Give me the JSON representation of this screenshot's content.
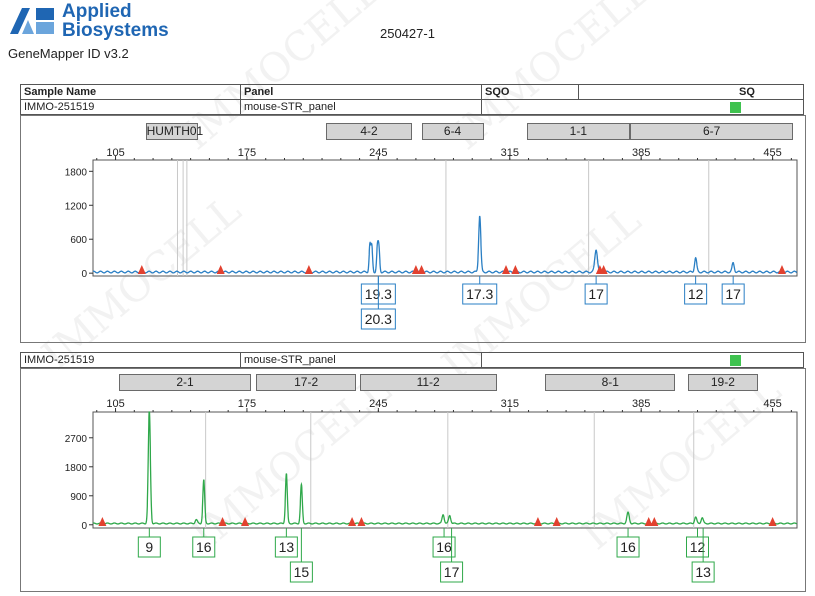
{
  "header": {
    "brand_line1": "Applied",
    "brand_line2": "Biosystems",
    "product": "GeneMapper ID v3.2",
    "run_id": "250427-1",
    "watermark": "IMMOCELL"
  },
  "table_headers": {
    "sample_name": "Sample Name",
    "panel": "Panel",
    "sqo": "SQO",
    "sq": "SQ"
  },
  "colors": {
    "blue_trace": "#2a7fc4",
    "green_trace": "#2fa84a",
    "marker": "#e2412f",
    "sq_ok": "#3fc24f",
    "bin_fill": "#d4d4d4"
  },
  "samples": [
    {
      "sample_name": "IMMO-251519",
      "panel": "mouse-STR_panel",
      "bins": [
        {
          "label": "HUMTH01",
          "from": 121,
          "to": 148
        },
        {
          "label": "4-2",
          "from": 217,
          "to": 262
        },
        {
          "label": "6-4",
          "from": 268,
          "to": 300
        },
        {
          "label": "1-1",
          "from": 324,
          "to": 378
        },
        {
          "label": "6-7",
          "from": 379,
          "to": 465
        }
      ],
      "allele_labels": [
        {
          "text": "19.3",
          "row": 0,
          "x": 245
        },
        {
          "text": "20.3",
          "row": 1,
          "x": 245
        },
        {
          "text": "17.3",
          "row": 0,
          "x": 299
        },
        {
          "text": "17",
          "row": 0,
          "x": 361
        },
        {
          "text": "12",
          "row": 0,
          "x": 414
        },
        {
          "text": "17",
          "row": 0,
          "x": 434
        }
      ]
    },
    {
      "sample_name": "IMMO-251519",
      "panel": "mouse-STR_panel",
      "bins": [
        {
          "label": "2-1",
          "from": 107,
          "to": 176
        },
        {
          "label": "17-2",
          "from": 180,
          "to": 232
        },
        {
          "label": "11-2",
          "from": 235,
          "to": 307
        },
        {
          "label": "8-1",
          "from": 334,
          "to": 402
        },
        {
          "label": "19-2",
          "from": 410,
          "to": 446
        }
      ],
      "allele_labels": [
        {
          "text": "9",
          "row": 0,
          "x": 123
        },
        {
          "text": "16",
          "row": 0,
          "x": 152
        },
        {
          "text": "13",
          "row": 0,
          "x": 196
        },
        {
          "text": "15",
          "row": 1,
          "x": 204
        },
        {
          "text": "16",
          "row": 0,
          "x": 280
        },
        {
          "text": "17",
          "row": 1,
          "x": 284
        },
        {
          "text": "16",
          "row": 0,
          "x": 378
        },
        {
          "text": "12",
          "row": 0,
          "x": 415
        },
        {
          "text": "13",
          "row": 1,
          "x": 418
        }
      ]
    }
  ],
  "chart_data": [
    {
      "type": "line",
      "title": "",
      "x_ticks": [
        105,
        175,
        245,
        315,
        385,
        455
      ],
      "xlim": [
        93,
        468
      ],
      "y_ticks": [
        0,
        600,
        1200,
        1800
      ],
      "ylim": [
        -50,
        2000
      ],
      "series": [
        {
          "color": "#2a7fc4",
          "baseline": 20,
          "peaks": [
            {
              "x": 240.5,
              "y": 480,
              "w": 0.6
            },
            {
              "x": 241.5,
              "y": 450,
              "w": 0.6
            },
            {
              "x": 244.5,
              "y": 430,
              "w": 0.6
            },
            {
              "x": 245.3,
              "y": 410,
              "w": 0.6
            },
            {
              "x": 299,
              "y": 1000,
              "w": 0.8
            },
            {
              "x": 361,
              "y": 400,
              "w": 1.0
            },
            {
              "x": 414,
              "y": 250,
              "w": 0.8
            },
            {
              "x": 434,
              "y": 160,
              "w": 0.8
            }
          ]
        }
      ],
      "markers_x": [
        119,
        161,
        208,
        265,
        268,
        313,
        318,
        363,
        365,
        460
      ],
      "gray_lines_x": [
        138,
        141,
        143,
        281,
        357,
        421
      ]
    },
    {
      "type": "line",
      "title": "",
      "x_ticks": [
        105,
        175,
        245,
        315,
        385,
        455
      ],
      "xlim": [
        93,
        468
      ],
      "y_ticks": [
        0,
        900,
        1800,
        2700
      ],
      "ylim": [
        -100,
        3500
      ],
      "series": [
        {
          "color": "#2fa84a",
          "baseline": 40,
          "peaks": [
            {
              "x": 123,
              "y": 3500,
              "w": 0.8
            },
            {
              "x": 152,
              "y": 1350,
              "w": 0.7
            },
            {
              "x": 196,
              "y": 1550,
              "w": 0.7
            },
            {
              "x": 204,
              "y": 1200,
              "w": 0.7
            },
            {
              "x": 279.5,
              "y": 280,
              "w": 0.8
            },
            {
              "x": 283,
              "y": 250,
              "w": 0.8
            },
            {
              "x": 378,
              "y": 340,
              "w": 0.9
            },
            {
              "x": 414,
              "y": 200,
              "w": 0.8
            },
            {
              "x": 417.5,
              "y": 180,
              "w": 0.8
            },
            {
              "x": 148,
              "y": 120,
              "w": 0.8
            }
          ]
        }
      ],
      "markers_x": [
        98,
        162,
        174,
        231,
        236,
        330,
        340,
        389,
        392,
        455
      ],
      "gray_lines_x": [
        153,
        209,
        282,
        360,
        413
      ]
    }
  ]
}
